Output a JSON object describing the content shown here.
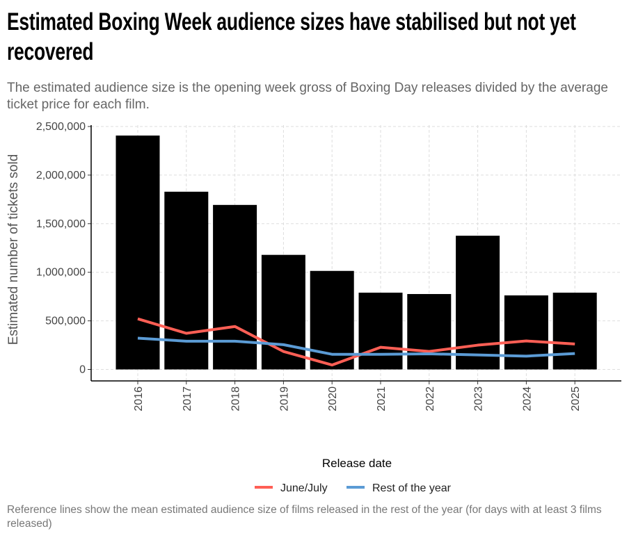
{
  "title": "Estimated Boxing Week audience sizes have stabilised but not yet recovered",
  "subtitle": "The estimated audience size is the opening week gross of Boxing Day releases divided by the average ticket price for each film.",
  "caption": "Reference lines show the mean estimated audience size of films released in the rest of the year (for days with at least 3 films released)",
  "chart_data": {
    "type": "bar",
    "title": "Estimated Boxing Week audience sizes have stabilised but not yet recovered",
    "xlabel": "",
    "ylabel": "Estimated number of tickets sold",
    "categories": [
      "2016",
      "2017",
      "2018",
      "2019",
      "2020",
      "2021",
      "2022",
      "2023",
      "2024",
      "2025"
    ],
    "values": [
      2407000,
      1829000,
      1693000,
      1179000,
      1014000,
      790000,
      776000,
      1376000,
      762000,
      790000
    ],
    "bar_color": "#000000",
    "lines": [
      {
        "name": "June/July",
        "color": "#FF5F55",
        "values": [
          521000,
          372000,
          442000,
          185000,
          46000,
          228000,
          185000,
          250000,
          293000,
          262000
        ]
      },
      {
        "name": "Rest of the year",
        "color": "#5B9BD5",
        "values": [
          322000,
          291000,
          291000,
          255000,
          156000,
          156000,
          161000,
          149000,
          137000,
          164000
        ]
      }
    ],
    "ylim": [
      0,
      2500000
    ],
    "yticks": [
      0,
      500000,
      1000000,
      1500000,
      2000000,
      2500000
    ],
    "ytick_labels": [
      "0",
      "500,000",
      "1,000,000",
      "1,500,000",
      "2,000,000",
      "2,500,000"
    ],
    "grid": true,
    "legend": {
      "title": "Release date",
      "position": "bottom"
    }
  }
}
